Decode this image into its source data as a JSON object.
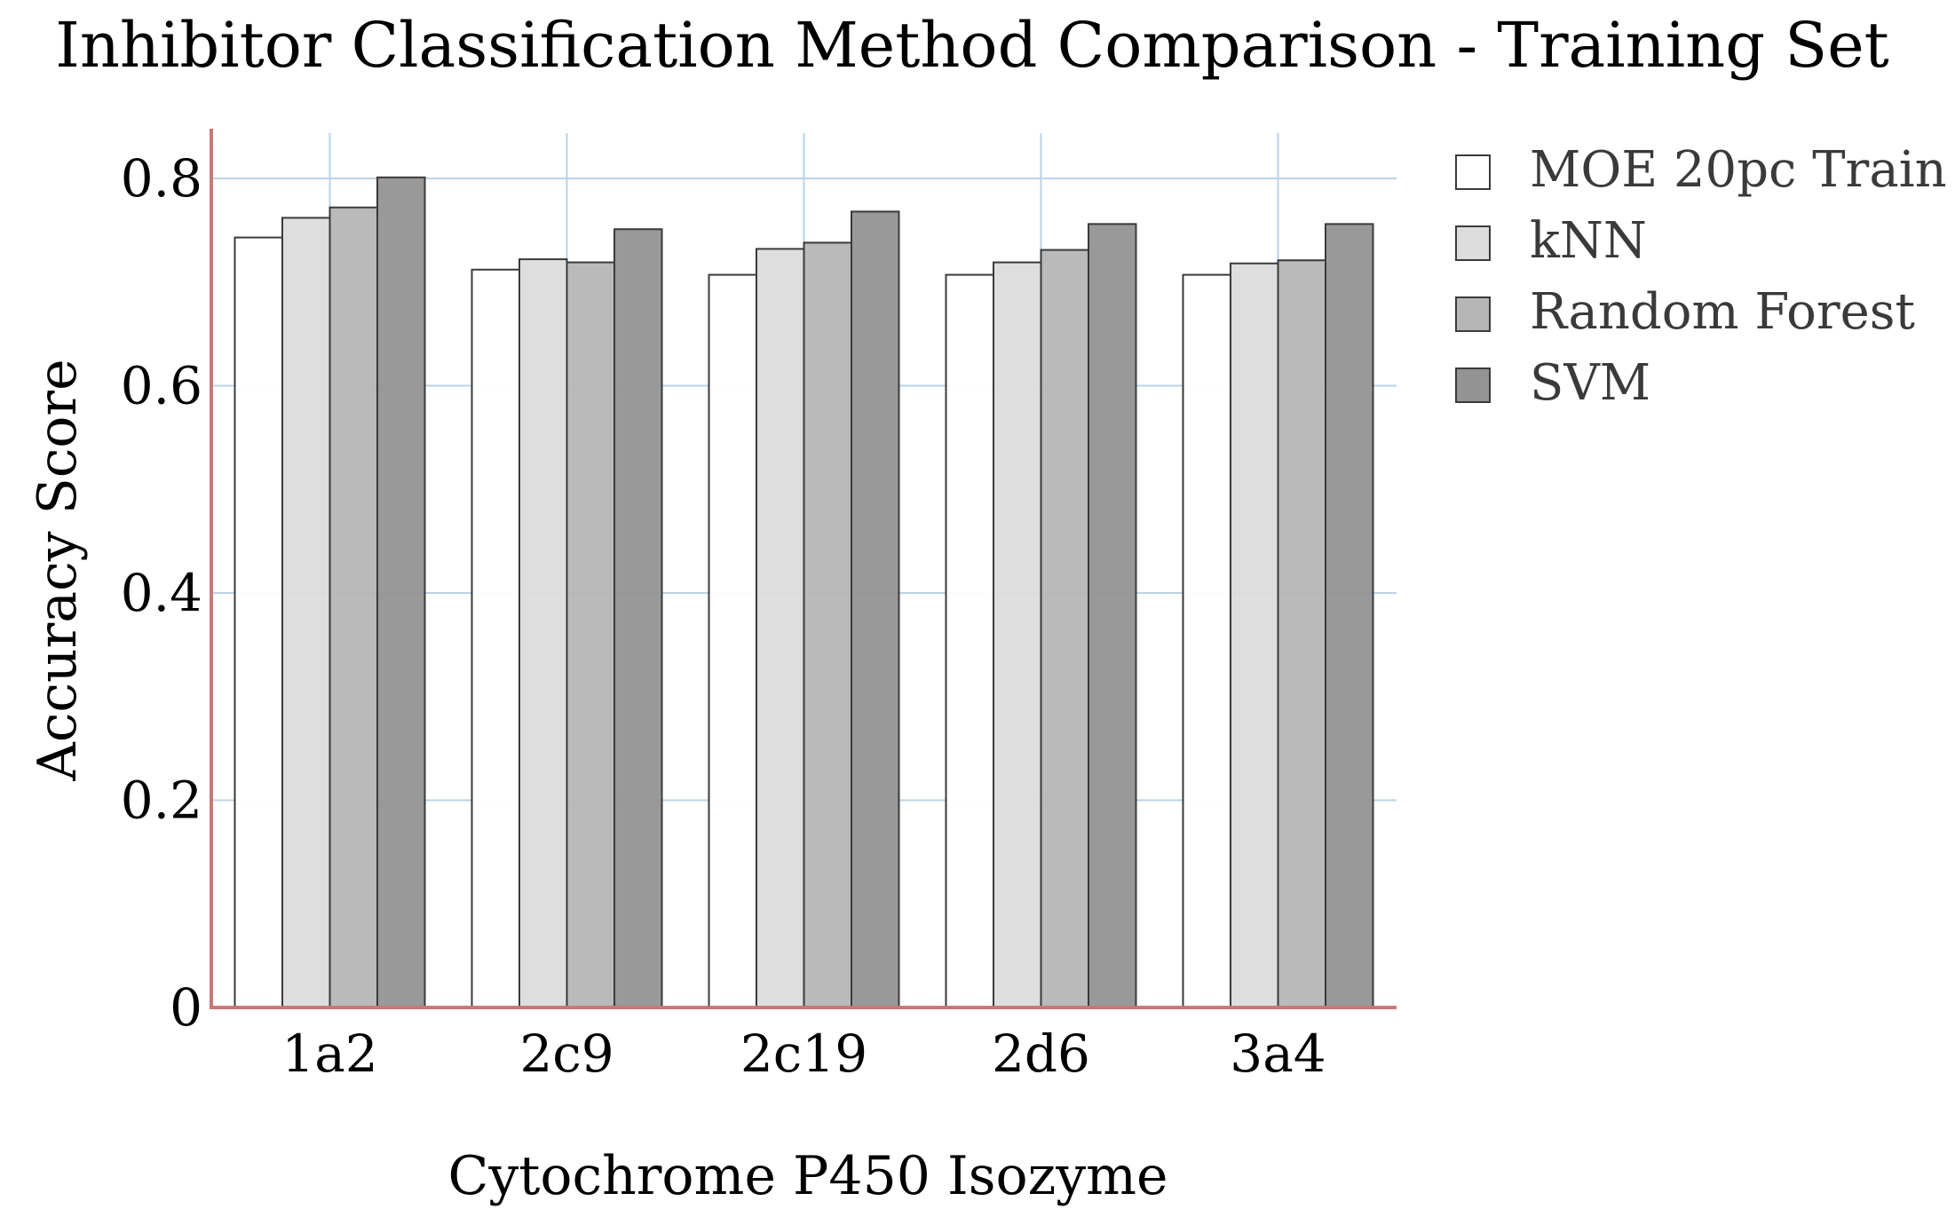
{
  "chart_data": {
    "type": "bar",
    "title": "Inhibitor Classification Method Comparison - Training Set",
    "xlabel": "Cytochrome P450 Isozyme",
    "ylabel": "Accuracy Score",
    "categories": [
      "1a2",
      "2c9",
      "2c19",
      "2d6",
      "3a4"
    ],
    "yticks": [
      "0",
      "0.2",
      "0.4",
      "0.6",
      "0.8"
    ],
    "ylim": [
      0,
      0.85
    ],
    "grid": true,
    "legend_position": "top-right, outside plot",
    "series": [
      {
        "name": "MOE 20pc Train",
        "color": "#ffffff",
        "values": [
          0.743,
          0.712,
          0.707,
          0.707,
          0.707
        ]
      },
      {
        "name": "kNN",
        "color": "#dcdcdc",
        "values": [
          0.762,
          0.722,
          0.732,
          0.719,
          0.718
        ]
      },
      {
        "name": "Random Forest",
        "color": "#b6b6b6",
        "values": [
          0.772,
          0.719,
          0.738,
          0.731,
          0.721
        ]
      },
      {
        "name": "SVM",
        "color": "#949494",
        "values": [
          0.801,
          0.751,
          0.768,
          0.756,
          0.756
        ]
      }
    ],
    "colors": {
      "axis": "#c97878",
      "grid": "#b9d3e6",
      "bar_edge": "#3a3a3a"
    }
  }
}
